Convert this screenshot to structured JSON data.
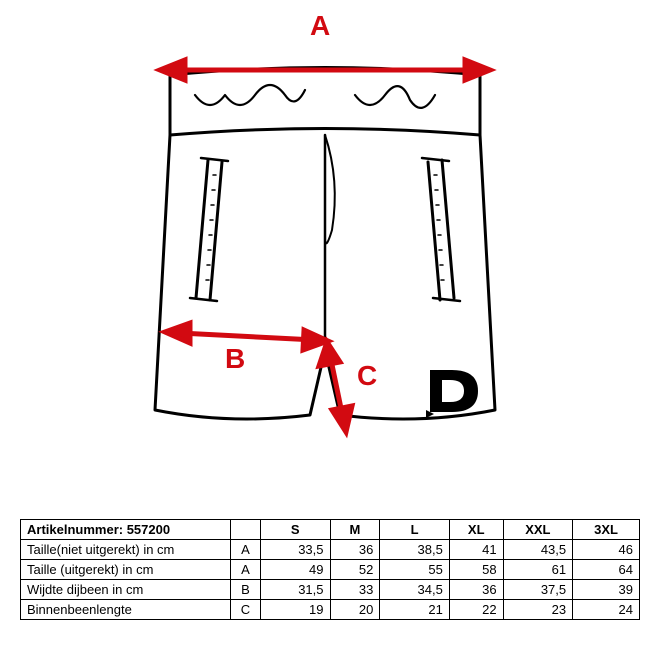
{
  "diagram": {
    "colors": {
      "outline": "#000000",
      "arrow": "#d20a11",
      "label": "#d20a11",
      "background": "#ffffff"
    },
    "stroke_width_outline": 3,
    "stroke_width_arrow": 5,
    "labels": {
      "A": "A",
      "B": "B",
      "C": "C"
    },
    "label_fontsize": 28,
    "logo_letter": "D"
  },
  "table": {
    "article_label": "Artikelnummer: 557200",
    "sizes": [
      "S",
      "M",
      "L",
      "XL",
      "XXL",
      "3XL"
    ],
    "rows": [
      {
        "label": "Taille(niet uitgerekt) in cm",
        "key": "A",
        "values": [
          "33,5",
          "36",
          "38,5",
          "41",
          "43,5",
          "46"
        ]
      },
      {
        "label": "Taille (uitgerekt) in cm",
        "key": "A",
        "values": [
          "49",
          "52",
          "55",
          "58",
          "61",
          "64"
        ]
      },
      {
        "label": "Wijdte dijbeen in cm",
        "key": "B",
        "values": [
          "31,5",
          "33",
          "34,5",
          "36",
          "37,5",
          "39"
        ]
      },
      {
        "label": "Binnenbeenlengte",
        "key": "C",
        "values": [
          "19",
          "20",
          "21",
          "22",
          "23",
          "24"
        ]
      }
    ],
    "border_color": "#000000",
    "text_color": "#000000",
    "font_size": 13
  }
}
